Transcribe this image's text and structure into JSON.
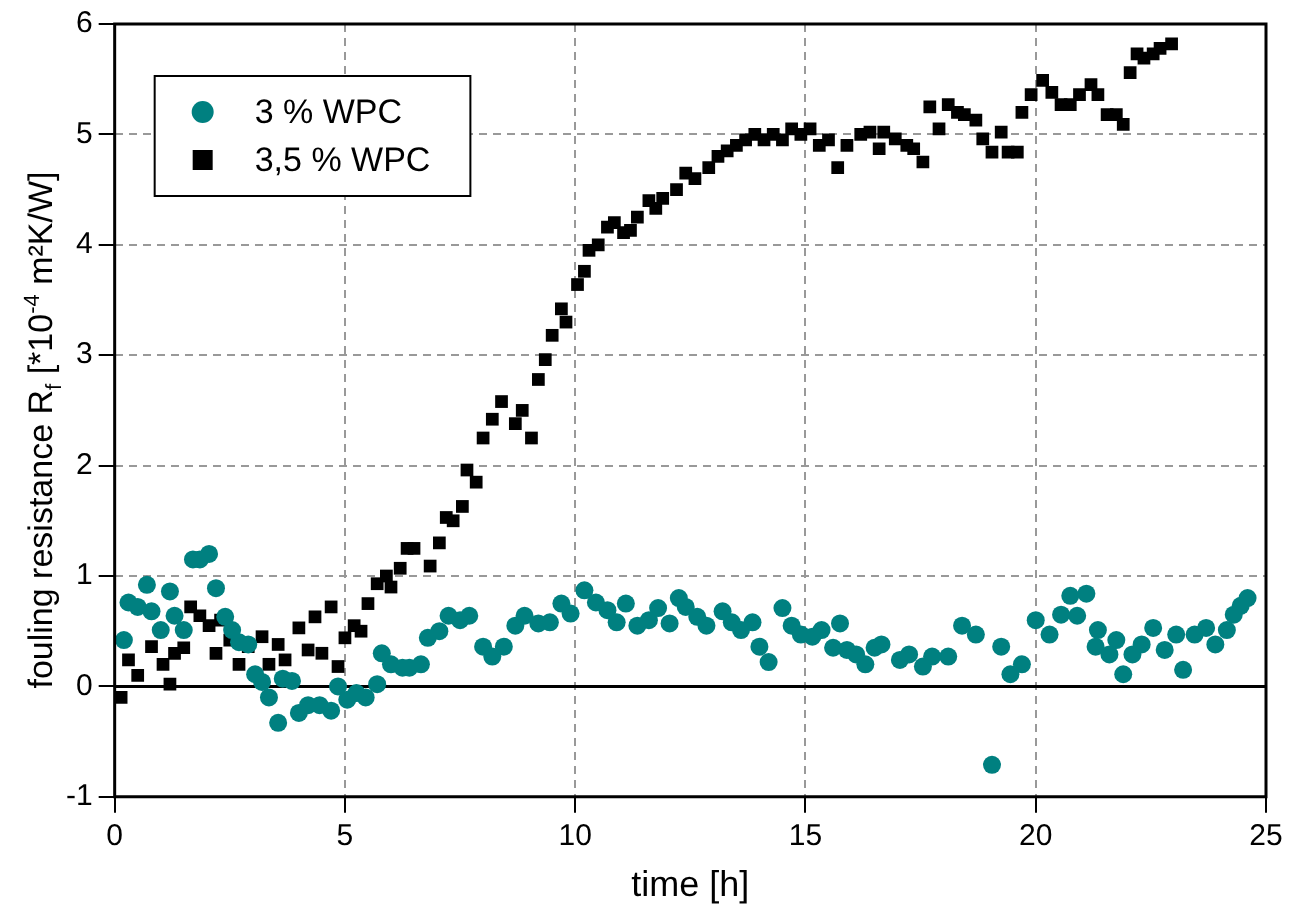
{
  "chart_data": {
    "type": "scatter",
    "xlabel": "time [h]",
    "ylabel": "fouling resistance R$_{f}$ [*10$^{-4}$ m²K/W]",
    "xlim": [
      0,
      25
    ],
    "xticks": [
      0,
      5,
      10,
      15,
      20,
      25
    ],
    "ylim": [
      -1,
      6
    ],
    "yticks": [
      -1,
      0,
      1,
      2,
      3,
      4,
      5,
      6
    ],
    "grid": true,
    "legend": "top left",
    "ref_lines": [
      {
        "axis": "y",
        "value": 0,
        "color": "#000000",
        "line_style": "solid"
      }
    ],
    "series": [
      {
        "name": "3 % WPC",
        "color": "#008080",
        "marker": "circle",
        "x": [
          0.2,
          0.3,
          0.5,
          0.7,
          0.8,
          1.0,
          1.2,
          1.3,
          1.5,
          1.7,
          1.85,
          2.05,
          2.2,
          2.4,
          2.55,
          2.7,
          2.9,
          3.05,
          3.2,
          3.35,
          3.55,
          3.65,
          3.85,
          4.0,
          4.2,
          4.45,
          4.7,
          4.85,
          5.05,
          5.25,
          5.45,
          5.7,
          5.8,
          6.0,
          6.25,
          6.4,
          6.65,
          6.8,
          7.05,
          7.25,
          7.5,
          7.7,
          8.0,
          8.2,
          8.45,
          8.7,
          8.9,
          9.2,
          9.45,
          9.7,
          9.9,
          10.2,
          10.45,
          10.7,
          10.9,
          11.1,
          11.35,
          11.6,
          11.8,
          12.05,
          12.25,
          12.4,
          12.65,
          12.85,
          13.2,
          13.4,
          13.6,
          13.85,
          14.0,
          14.2,
          14.5,
          14.7,
          14.9,
          15.15,
          15.35,
          15.6,
          15.75,
          15.9,
          16.1,
          16.3,
          16.5,
          16.65,
          17.05,
          17.25,
          17.55,
          17.75,
          18.1,
          18.4,
          18.7,
          19.05,
          19.25,
          19.45,
          19.7,
          20.0,
          20.3,
          20.55,
          20.75,
          20.9,
          21.1,
          21.3,
          21.35,
          21.6,
          21.75,
          21.9,
          22.1,
          22.3,
          22.55,
          22.8,
          23.05,
          23.2,
          23.45,
          23.7,
          23.9,
          24.15,
          24.3,
          24.45,
          24.6
        ],
        "values": [
          0.42,
          0.76,
          0.72,
          0.92,
          0.68,
          0.51,
          0.86,
          0.64,
          0.51,
          1.15,
          1.15,
          1.2,
          0.89,
          0.63,
          0.51,
          0.4,
          0.38,
          0.11,
          0.04,
          -0.1,
          -0.33,
          0.07,
          0.05,
          -0.24,
          -0.17,
          -0.17,
          -0.22,
          0,
          -0.12,
          -0.06,
          -0.1,
          0.02,
          0.3,
          0.2,
          0.17,
          0.17,
          0.2,
          0.44,
          0.5,
          0.64,
          0.6,
          0.64,
          0.36,
          0.27,
          0.36,
          0.55,
          0.64,
          0.57,
          0.58,
          0.75,
          0.66,
          0.87,
          0.76,
          0.69,
          0.58,
          0.75,
          0.55,
          0.6,
          0.71,
          0.57,
          0.8,
          0.72,
          0.63,
          0.55,
          0.68,
          0.58,
          0.51,
          0.58,
          0.36,
          0.22,
          0.71,
          0.55,
          0.47,
          0.45,
          0.51,
          0.35,
          0.57,
          0.33,
          0.29,
          0.2,
          0.35,
          0.38,
          0.24,
          0.29,
          0.18,
          0.27,
          0.27,
          0.55,
          0.47,
          -0.71,
          0.36,
          0.11,
          0.2,
          0.6,
          0.47,
          0.65,
          0.82,
          0.64,
          0.84,
          0.36,
          0.51,
          0.29,
          0.42,
          0.11,
          0.29,
          0.38,
          0.53,
          0.33,
          0.47,
          0.15,
          0.47,
          0.53,
          0.38,
          0.51,
          0.65,
          0.73,
          0.8
        ]
      },
      {
        "name": "3,5 % WPC",
        "color": "#000000",
        "marker": "square",
        "x": [
          0.14,
          0.3,
          0.5,
          0.8,
          1.05,
          1.2,
          1.3,
          1.5,
          1.65,
          1.85,
          2.05,
          2.2,
          2.3,
          2.5,
          2.7,
          2.9,
          3.2,
          3.35,
          3.55,
          3.7,
          4.0,
          4.2,
          4.35,
          4.5,
          4.7,
          4.85,
          5.0,
          5.2,
          5.35,
          5.5,
          5.7,
          5.9,
          6.0,
          6.2,
          6.35,
          6.5,
          6.85,
          7.05,
          7.2,
          7.35,
          7.55,
          7.65,
          7.85,
          8.0,
          8.2,
          8.4,
          8.7,
          8.85,
          9.05,
          9.2,
          9.35,
          9.5,
          9.7,
          9.8,
          10.05,
          10.2,
          10.3,
          10.5,
          10.7,
          10.85,
          11.05,
          11.2,
          11.35,
          11.6,
          11.75,
          11.9,
          12.2,
          12.4,
          12.6,
          12.9,
          13.1,
          13.3,
          13.5,
          13.7,
          13.9,
          14.1,
          14.3,
          14.5,
          14.7,
          14.9,
          15.1,
          15.3,
          15.5,
          15.7,
          15.9,
          16.2,
          16.4,
          16.6,
          16.7,
          16.95,
          17.2,
          17.35,
          17.55,
          17.7,
          17.9,
          18.1,
          18.3,
          18.45,
          18.7,
          18.85,
          19.05,
          19.25,
          19.4,
          19.6,
          19.7,
          19.9,
          20.15,
          20.35,
          20.55,
          20.75,
          20.95,
          21.2,
          21.35,
          21.55,
          21.75,
          21.9,
          22.05,
          22.2,
          22.35,
          22.55,
          22.7,
          22.95
        ],
        "values": [
          -0.1,
          0.24,
          0.1,
          0.36,
          0.2,
          0.02,
          0.3,
          0.35,
          0.72,
          0.64,
          0.55,
          0.3,
          0.6,
          0.42,
          0.2,
          0.36,
          0.45,
          0.2,
          0.38,
          0.24,
          0.53,
          0.33,
          0.63,
          0.3,
          0.72,
          0.18,
          0.44,
          0.55,
          0.5,
          0.75,
          0.93,
          1.0,
          0.9,
          1.07,
          1.25,
          1.25,
          1.09,
          1.3,
          1.53,
          1.5,
          1.63,
          1.96,
          1.85,
          2.25,
          2.42,
          2.58,
          2.38,
          2.5,
          2.25,
          2.78,
          2.96,
          3.18,
          3.42,
          3.3,
          3.64,
          3.76,
          3.95,
          4.0,
          4.16,
          4.2,
          4.11,
          4.13,
          4.25,
          4.4,
          4.33,
          4.42,
          4.5,
          4.65,
          4.6,
          4.7,
          4.8,
          4.85,
          4.9,
          4.95,
          5.0,
          4.95,
          5.0,
          4.95,
          5.05,
          5.0,
          5.05,
          4.9,
          4.95,
          4.7,
          4.9,
          5.0,
          5.02,
          4.87,
          5.02,
          4.96,
          4.9,
          4.87,
          4.75,
          5.25,
          5.05,
          5.27,
          5.2,
          5.18,
          5.13,
          4.96,
          4.84,
          5.02,
          4.84,
          4.84,
          5.2,
          5.36,
          5.49,
          5.38,
          5.27,
          5.27,
          5.36,
          5.45,
          5.36,
          5.18,
          5.18,
          5.09,
          5.56,
          5.73,
          5.69,
          5.73,
          5.78,
          5.82
        ]
      }
    ]
  }
}
